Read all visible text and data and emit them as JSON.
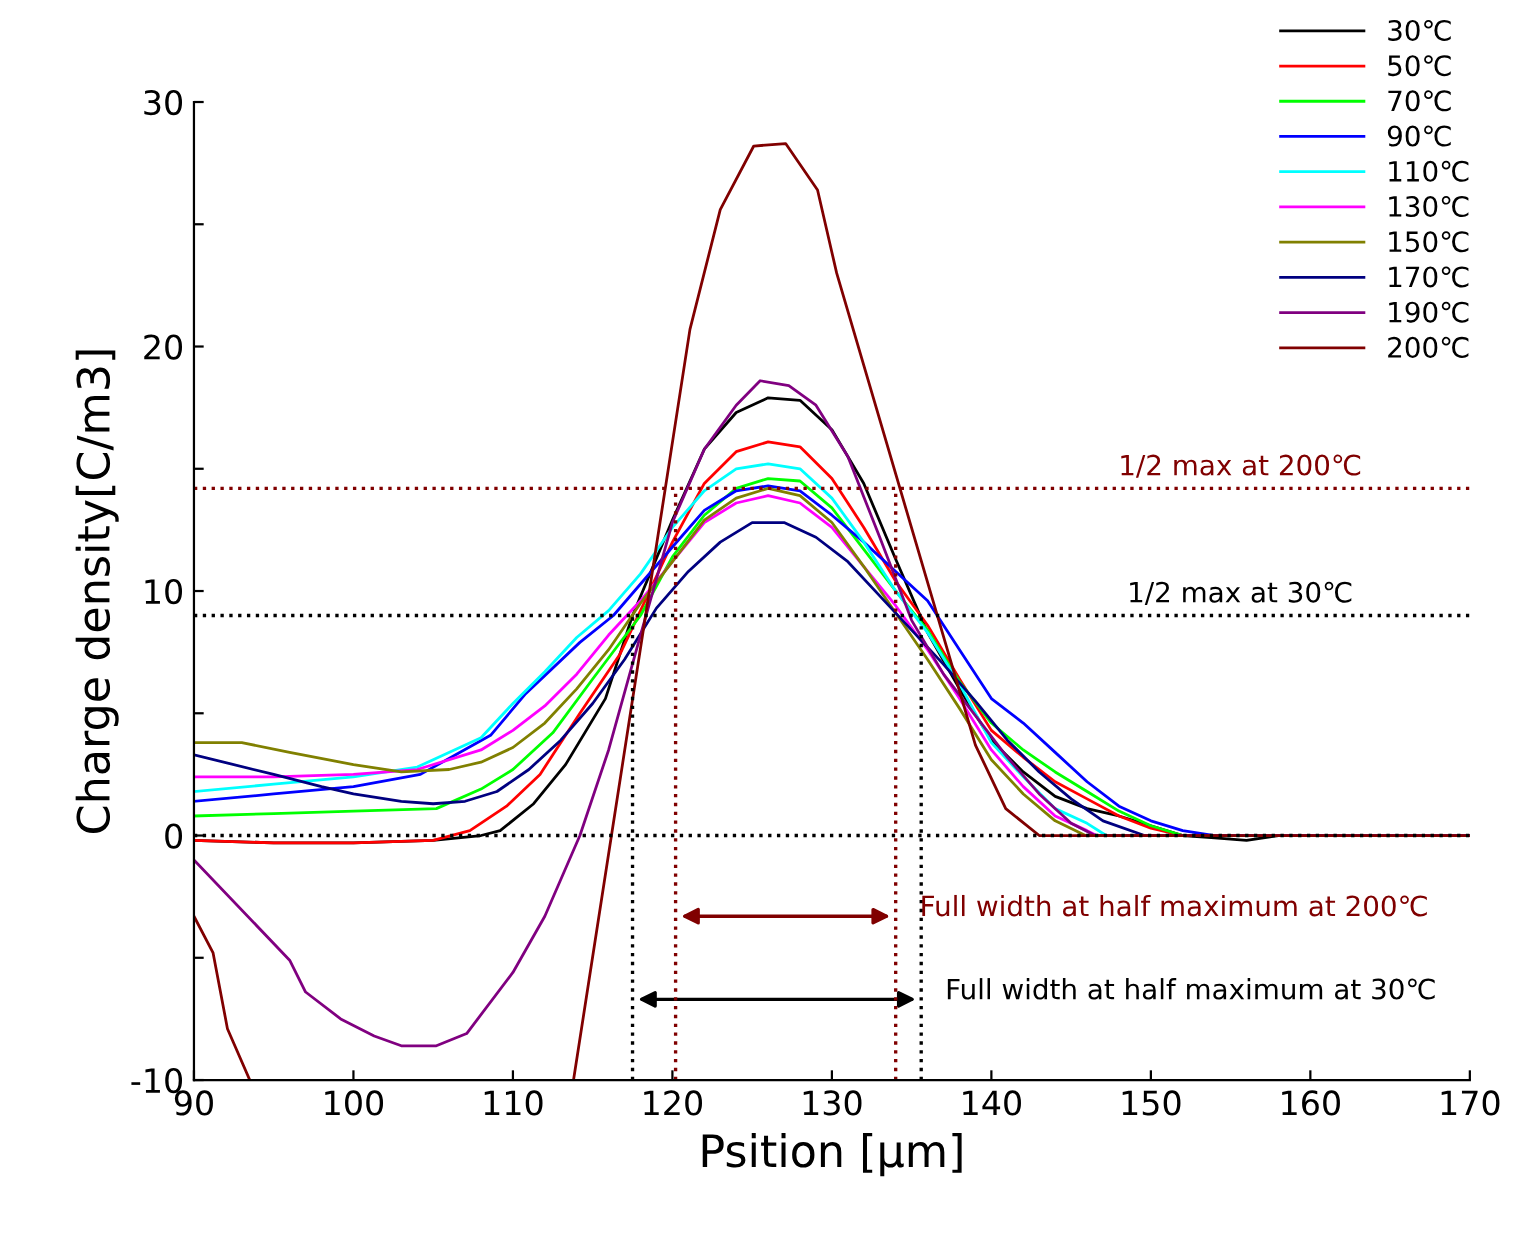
{
  "chart_data": {
    "type": "line",
    "xlabel": "Psition [μm]",
    "ylabel": "Charge density[C/m3]",
    "xlim": [
      90,
      170
    ],
    "xticks": [
      90,
      100,
      110,
      120,
      130,
      140,
      150,
      160,
      170
    ],
    "ylim": [
      -10,
      30
    ],
    "yticks": [
      -10,
      {
        "value": -5,
        "label": null
      },
      0,
      {
        "value": 5,
        "label": null
      },
      10,
      {
        "value": 15,
        "label": null
      },
      20,
      {
        "value": 25,
        "label": null
      },
      30
    ],
    "grid": false,
    "legend": "top right",
    "line_style": "solid",
    "marker": "none",
    "series": [
      {
        "name": "30℃",
        "color": "#000000",
        "x": [
          90,
          95,
          100,
          105,
          108,
          109.2,
          111.3,
          113.3,
          115.8,
          117.5,
          120.0,
          122,
          124,
          126,
          128,
          130,
          132,
          134,
          136,
          138,
          140,
          142,
          144,
          146,
          148,
          150,
          152,
          154,
          156,
          158,
          170
        ],
        "values": [
          -0.2,
          -0.3,
          -0.3,
          -0.2,
          0.0,
          0.2,
          1.3,
          2.9,
          5.6,
          9.0,
          12.9,
          15.8,
          17.3,
          17.9,
          17.8,
          16.6,
          14.4,
          11.3,
          8.3,
          6.0,
          3.9,
          2.6,
          1.6,
          1.1,
          0.8,
          0.4,
          0.0,
          -0.1,
          -0.2,
          0.0,
          0.0
        ]
      },
      {
        "name": "50℃",
        "color": "#ff0000",
        "x": [
          90,
          95,
          100,
          105,
          107.3,
          109.6,
          111.7,
          114.2,
          116.7,
          118,
          120,
          122,
          124,
          126,
          128,
          130,
          132,
          134,
          136,
          138,
          140,
          142,
          144,
          146,
          148,
          150,
          152,
          170
        ],
        "values": [
          -0.2,
          -0.3,
          -0.3,
          -0.2,
          0.2,
          1.2,
          2.5,
          5.0,
          7.4,
          9.2,
          12.0,
          14.4,
          15.7,
          16.1,
          15.9,
          14.6,
          12.6,
          10.4,
          8.6,
          6.4,
          4.3,
          3.2,
          2.2,
          1.5,
          0.8,
          0.3,
          0.0,
          0.0
        ]
      },
      {
        "name": "70℃",
        "color": "#00ff00",
        "x": [
          90,
          95,
          100,
          105.2,
          108,
          110,
          112.5,
          115,
          118,
          120,
          122,
          124,
          126,
          128,
          130,
          132,
          134,
          136,
          138,
          140,
          142,
          144,
          146,
          148,
          150,
          152,
          170
        ],
        "values": [
          0.8,
          0.9,
          1.0,
          1.1,
          1.9,
          2.7,
          4.2,
          6.4,
          9.0,
          11.4,
          13.1,
          14.2,
          14.6,
          14.5,
          13.4,
          11.7,
          10.0,
          8.4,
          6.3,
          4.6,
          3.5,
          2.6,
          1.8,
          1.0,
          0.4,
          0.0,
          0.0
        ]
      },
      {
        "name": "90℃",
        "color": "#0000ff",
        "x": [
          90,
          95,
          100,
          104.2,
          108.6,
          110.8,
          114.2,
          116.3,
          120,
          122,
          124,
          126,
          128,
          130,
          132,
          134,
          136,
          138,
          140,
          142,
          144,
          146,
          148,
          150,
          152,
          154,
          170
        ],
        "values": [
          1.4,
          1.7,
          2.0,
          2.5,
          4.1,
          5.8,
          7.9,
          9.0,
          11.8,
          13.3,
          14.1,
          14.3,
          14.1,
          13.1,
          12.0,
          10.8,
          9.6,
          7.6,
          5.6,
          4.6,
          3.4,
          2.2,
          1.2,
          0.6,
          0.2,
          0.0,
          0.0
        ]
      },
      {
        "name": "110℃",
        "color": "#00ffff",
        "x": [
          90,
          95,
          100,
          104,
          108,
          110,
          112,
          114,
          116,
          118,
          120,
          122,
          124,
          126,
          128,
          130,
          132,
          134,
          136,
          138,
          140,
          142,
          144,
          146,
          147.2,
          170
        ],
        "values": [
          1.8,
          2.1,
          2.4,
          2.8,
          4.0,
          5.4,
          6.7,
          8.1,
          9.2,
          10.7,
          12.6,
          14.1,
          15.0,
          15.2,
          15.0,
          13.8,
          12.0,
          10.0,
          8.3,
          6.2,
          3.8,
          2.4,
          1.1,
          0.5,
          0.0,
          0.0
        ]
      },
      {
        "name": "130℃",
        "color": "#ff00ff",
        "x": [
          90,
          95,
          100,
          104,
          108,
          110,
          112,
          114,
          116,
          118,
          120,
          122,
          124,
          126,
          128,
          130,
          132,
          134,
          136,
          138,
          140,
          142,
          144,
          146,
          146.6,
          170
        ],
        "values": [
          2.4,
          2.4,
          2.5,
          2.7,
          3.5,
          4.3,
          5.3,
          6.6,
          8.2,
          9.6,
          11.2,
          12.8,
          13.6,
          13.9,
          13.6,
          12.6,
          11.0,
          9.4,
          7.6,
          5.6,
          3.5,
          2.0,
          0.8,
          0.2,
          0.0,
          0.0
        ]
      },
      {
        "name": "150℃",
        "color": "#808000",
        "x": [
          90,
          93,
          96,
          100,
          103,
          106,
          108,
          110,
          112,
          114,
          116,
          118,
          120,
          122,
          124,
          126,
          128,
          130,
          132,
          134,
          136,
          138,
          140,
          142,
          144,
          145.9,
          170
        ],
        "values": [
          3.8,
          3.8,
          3.4,
          2.9,
          2.6,
          2.7,
          3.0,
          3.6,
          4.6,
          6.0,
          7.6,
          9.5,
          11.2,
          12.9,
          13.8,
          14.2,
          13.9,
          12.8,
          11.0,
          9.1,
          7.2,
          5.2,
          3.1,
          1.7,
          0.6,
          0.0,
          0.0
        ]
      },
      {
        "name": "170℃",
        "color": "#000080",
        "x": [
          90,
          95,
          98,
          100,
          103,
          105,
          107,
          109,
          111,
          113,
          115,
          117,
          119,
          121,
          123,
          125,
          127,
          129,
          131,
          133,
          135,
          137,
          139,
          141,
          143,
          145,
          147,
          149.6,
          170
        ],
        "values": [
          3.3,
          2.5,
          2.0,
          1.7,
          1.4,
          1.3,
          1.4,
          1.8,
          2.7,
          3.9,
          5.4,
          7.2,
          9.3,
          10.8,
          12.0,
          12.8,
          12.8,
          12.2,
          11.2,
          9.8,
          8.4,
          7.0,
          5.5,
          3.9,
          2.6,
          1.5,
          0.6,
          0.0,
          0.0
        ]
      },
      {
        "name": "190℃",
        "color": "#800080",
        "x": [
          90,
          96,
          97,
          99.2,
          101.3,
          103,
          105.2,
          107.1,
          110,
          112,
          114.2,
          116,
          118,
          120,
          122,
          124,
          125.5,
          127.3,
          129,
          131,
          133,
          135,
          137,
          139,
          141,
          143,
          145,
          146.5,
          170
        ],
        "values": [
          -1.0,
          -5.1,
          -6.4,
          -7.5,
          -8.2,
          -8.6,
          -8.6,
          -8.1,
          -5.6,
          -3.3,
          0.0,
          3.5,
          8.2,
          12.8,
          15.8,
          17.6,
          18.6,
          18.4,
          17.6,
          15.5,
          12.2,
          8.8,
          6.6,
          4.9,
          3.2,
          1.7,
          0.5,
          0.0,
          0.0
        ]
      },
      {
        "name": "200℃",
        "color": "#800000",
        "x": [
          90,
          91.2,
          92.1,
          93.5,
          100,
          113.8,
          121.1,
          123.0,
          125.1,
          127.1,
          129.1,
          130.3,
          139.0,
          140.9,
          143.0,
          170
        ],
        "values": [
          -3.3,
          -4.8,
          -7.9,
          -10,
          null,
          -10,
          20.7,
          25.6,
          28.2,
          28.3,
          26.4,
          23.0,
          3.7,
          1.1,
          0.0,
          0.0
        ]
      }
    ],
    "ref_lines": [
      {
        "axis": "y",
        "value": 0,
        "color": "#000000",
        "line_style": "dotted"
      },
      {
        "axis": "y",
        "value": 9.0,
        "color": "#000000",
        "line_style": "dotted",
        "label": "1/2 max at 30℃"
      },
      {
        "axis": "y",
        "value": 14.2,
        "color": "#800000",
        "line_style": "dotted",
        "label": "1/2 max at 200℃"
      },
      {
        "axis": "x",
        "value": 120.2,
        "color": "#800000",
        "line_style": "dotted"
      },
      {
        "axis": "x",
        "value": 134.0,
        "color": "#800000",
        "line_style": "dotted",
        "label": "Full width at half maximum at 200℃"
      },
      {
        "axis": "x",
        "value": 117.5,
        "color": "#000000",
        "line_style": "dotted"
      },
      {
        "axis": "x",
        "value": 135.6,
        "color": "#000000",
        "line_style": "dotted",
        "label": "Full width at half maximum at 30℃"
      }
    ]
  }
}
